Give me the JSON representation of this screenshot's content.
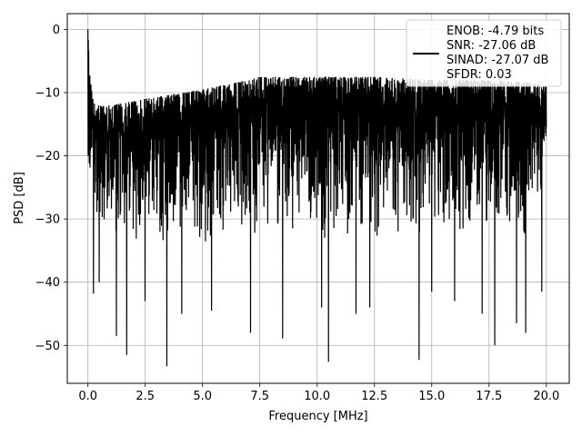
{
  "chart_data": {
    "type": "line",
    "title": "",
    "xlabel": "Frequency [MHz]",
    "ylabel": "PSD [dB]",
    "xlim": [
      -0.9,
      21.0
    ],
    "ylim": [
      -56,
      2.5
    ],
    "x_ticks": [
      0.0,
      2.5,
      5.0,
      7.5,
      10.0,
      12.5,
      15.0,
      17.5,
      20.0
    ],
    "x_tick_labels": [
      "0.0",
      "2.5",
      "5.0",
      "7.5",
      "10.0",
      "12.5",
      "15.0",
      "17.5",
      "20.0"
    ],
    "y_ticks": [
      0,
      -10,
      -20,
      -30,
      -40,
      -50
    ],
    "y_tick_labels": [
      "0",
      "−10",
      "−20",
      "−30",
      "−40",
      "−50"
    ],
    "grid": true,
    "legend_position": "top-right",
    "legend_lines": [
      "ENOB: -4.79 bits",
      "SNR: -27.06 dB",
      "SINAD: -27.07 dB",
      "SFDR: 0.03"
    ],
    "series": [
      {
        "color": "#000000",
        "x_start": 0.0,
        "x_end": 20.0,
        "upper_envelope": [
          [
            0.0,
            0.0
          ],
          [
            0.05,
            -5.0
          ],
          [
            0.1,
            -8.0
          ],
          [
            0.3,
            -12.0
          ],
          [
            1.0,
            -12.0
          ],
          [
            2.5,
            -11.0
          ],
          [
            5.0,
            -9.5
          ],
          [
            7.0,
            -8.0
          ],
          [
            7.5,
            -7.5
          ],
          [
            10.0,
            -7.5
          ],
          [
            12.5,
            -7.5
          ],
          [
            15.0,
            -8.0
          ],
          [
            17.5,
            -8.0
          ],
          [
            19.5,
            -8.5
          ],
          [
            20.0,
            -9.0
          ]
        ],
        "typical_floor": [
          [
            0.0,
            -26.0
          ],
          [
            0.5,
            -33.0
          ],
          [
            5.0,
            -34.0
          ],
          [
            10.0,
            -33.5
          ],
          [
            15.0,
            -33.5
          ],
          [
            20.0,
            -33.0
          ]
        ],
        "dips": [
          [
            0.25,
            -41.8
          ],
          [
            0.5,
            -40.0
          ],
          [
            1.25,
            -48.5
          ],
          [
            1.7,
            -51.5
          ],
          [
            2.5,
            -43.0
          ],
          [
            3.45,
            -53.3
          ],
          [
            4.1,
            -45.0
          ],
          [
            5.4,
            -44.5
          ],
          [
            7.1,
            -48.0
          ],
          [
            8.5,
            -48.9
          ],
          [
            10.2,
            -44.0
          ],
          [
            10.5,
            -52.6
          ],
          [
            11.7,
            -45.0
          ],
          [
            12.3,
            -44.0
          ],
          [
            14.45,
            -52.3
          ],
          [
            15.0,
            -41.5
          ],
          [
            16.0,
            -43.0
          ],
          [
            17.2,
            -45.0
          ],
          [
            17.75,
            -50.0
          ],
          [
            18.7,
            -46.5
          ],
          [
            19.1,
            -48.0
          ],
          [
            19.8,
            -41.5
          ]
        ]
      }
    ]
  }
}
